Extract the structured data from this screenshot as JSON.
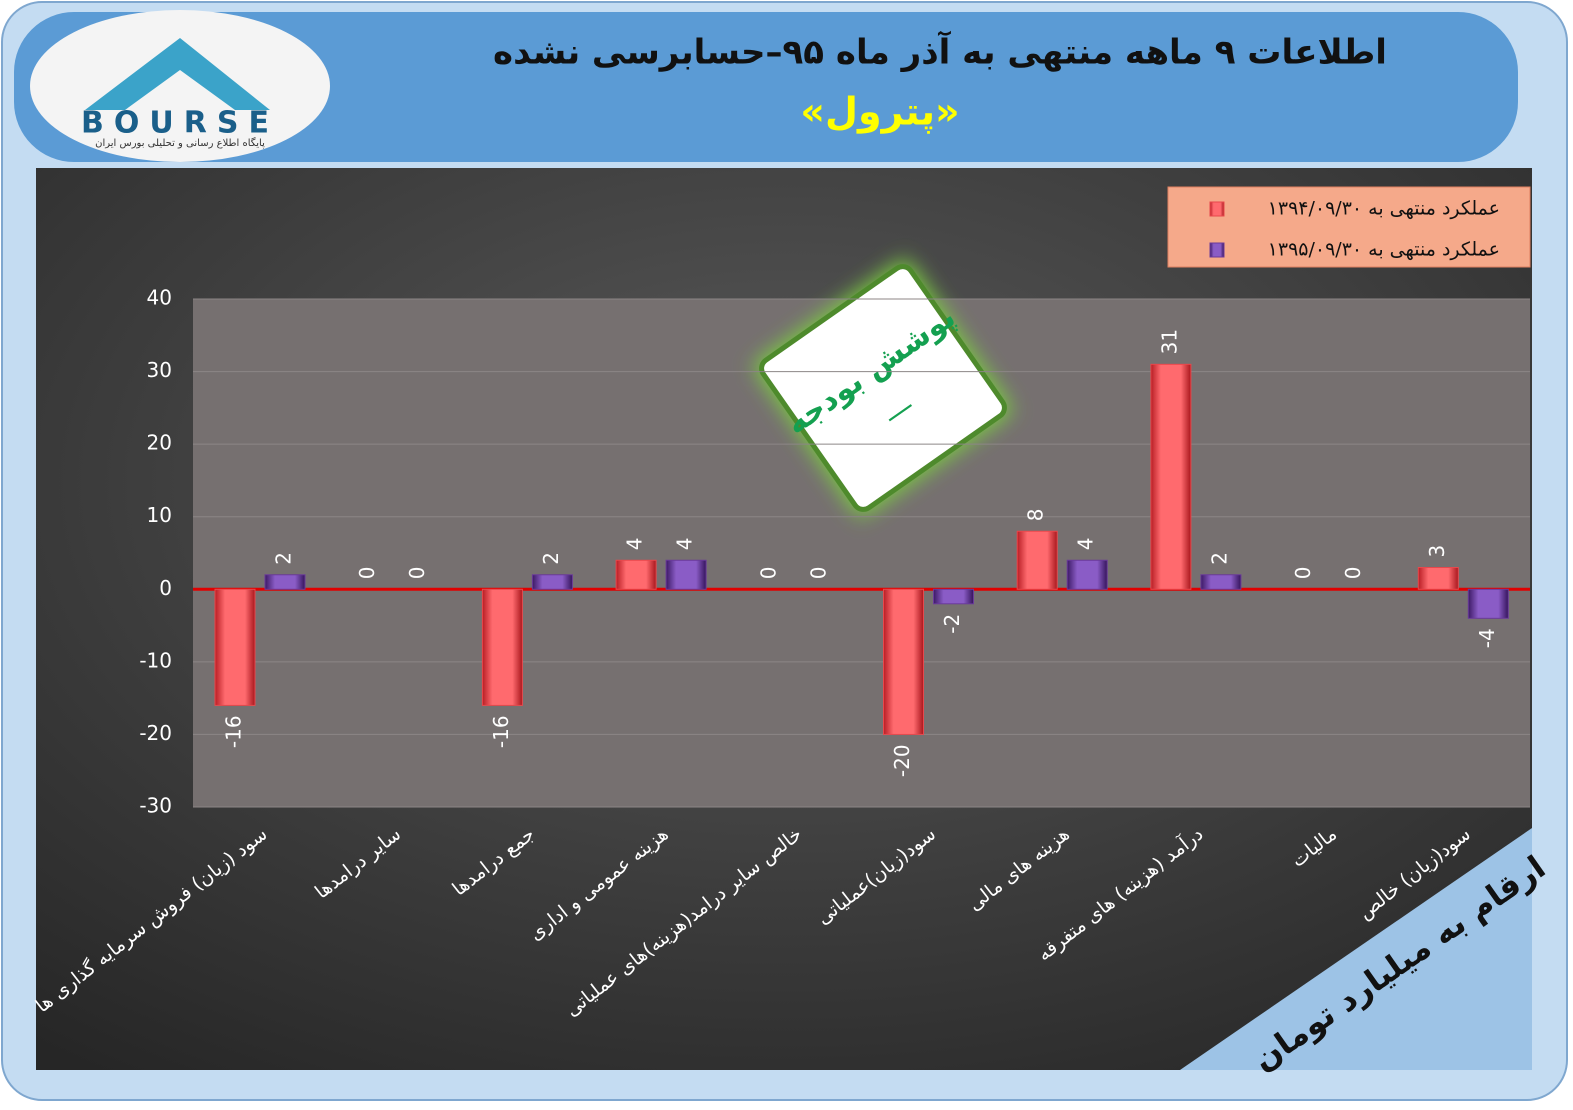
{
  "chart_data": {
    "type": "bar",
    "title": "اطلاعات ۹ ماهه منتهی به آذر ماه ۹۵–حسابرسی نشده",
    "subtitle": "«پترول»",
    "categories": [
      "سود (زیان) فروش سرمایه گذاری ها",
      "سایر درامدها",
      "جمع درامدها",
      "هزینه عمومی و اداری",
      "خالص سایر درامد(هزینه)های عملیاتی",
      "سود(زیان)عملیاتی",
      "هزینه های مالی",
      "درآمد (هزینه) های متفرقه",
      "مالیات",
      "سود(زیان) خالص"
    ],
    "series": [
      {
        "name": "عملکرد منتهی به ۱۳۹۴/۰۹/۳۰",
        "color": "#e8484c",
        "values": [
          -16,
          0,
          -16,
          4,
          0,
          -20,
          8,
          31,
          0,
          3
        ]
      },
      {
        "name": "عملکرد منتهی به ۱۳۹۵/۰۹/۳۰",
        "color": "#6a3a9a",
        "values": [
          2,
          0,
          2,
          4,
          0,
          -2,
          4,
          2,
          0,
          -4
        ]
      }
    ],
    "ylim": [
      -30,
      40
    ],
    "yticks": [
      -30,
      -20,
      -10,
      0,
      10,
      20,
      30,
      40
    ],
    "grid": true,
    "legend": "top-right"
  },
  "badge": {
    "title": "پوشش بودجه",
    "value": "—"
  },
  "note": "ارقام به میلیارد تومان",
  "logo": {
    "name": "BOURSE",
    "tagline": "پایگاه اطلاع رسانی و تحلیلی بورس ایران"
  }
}
